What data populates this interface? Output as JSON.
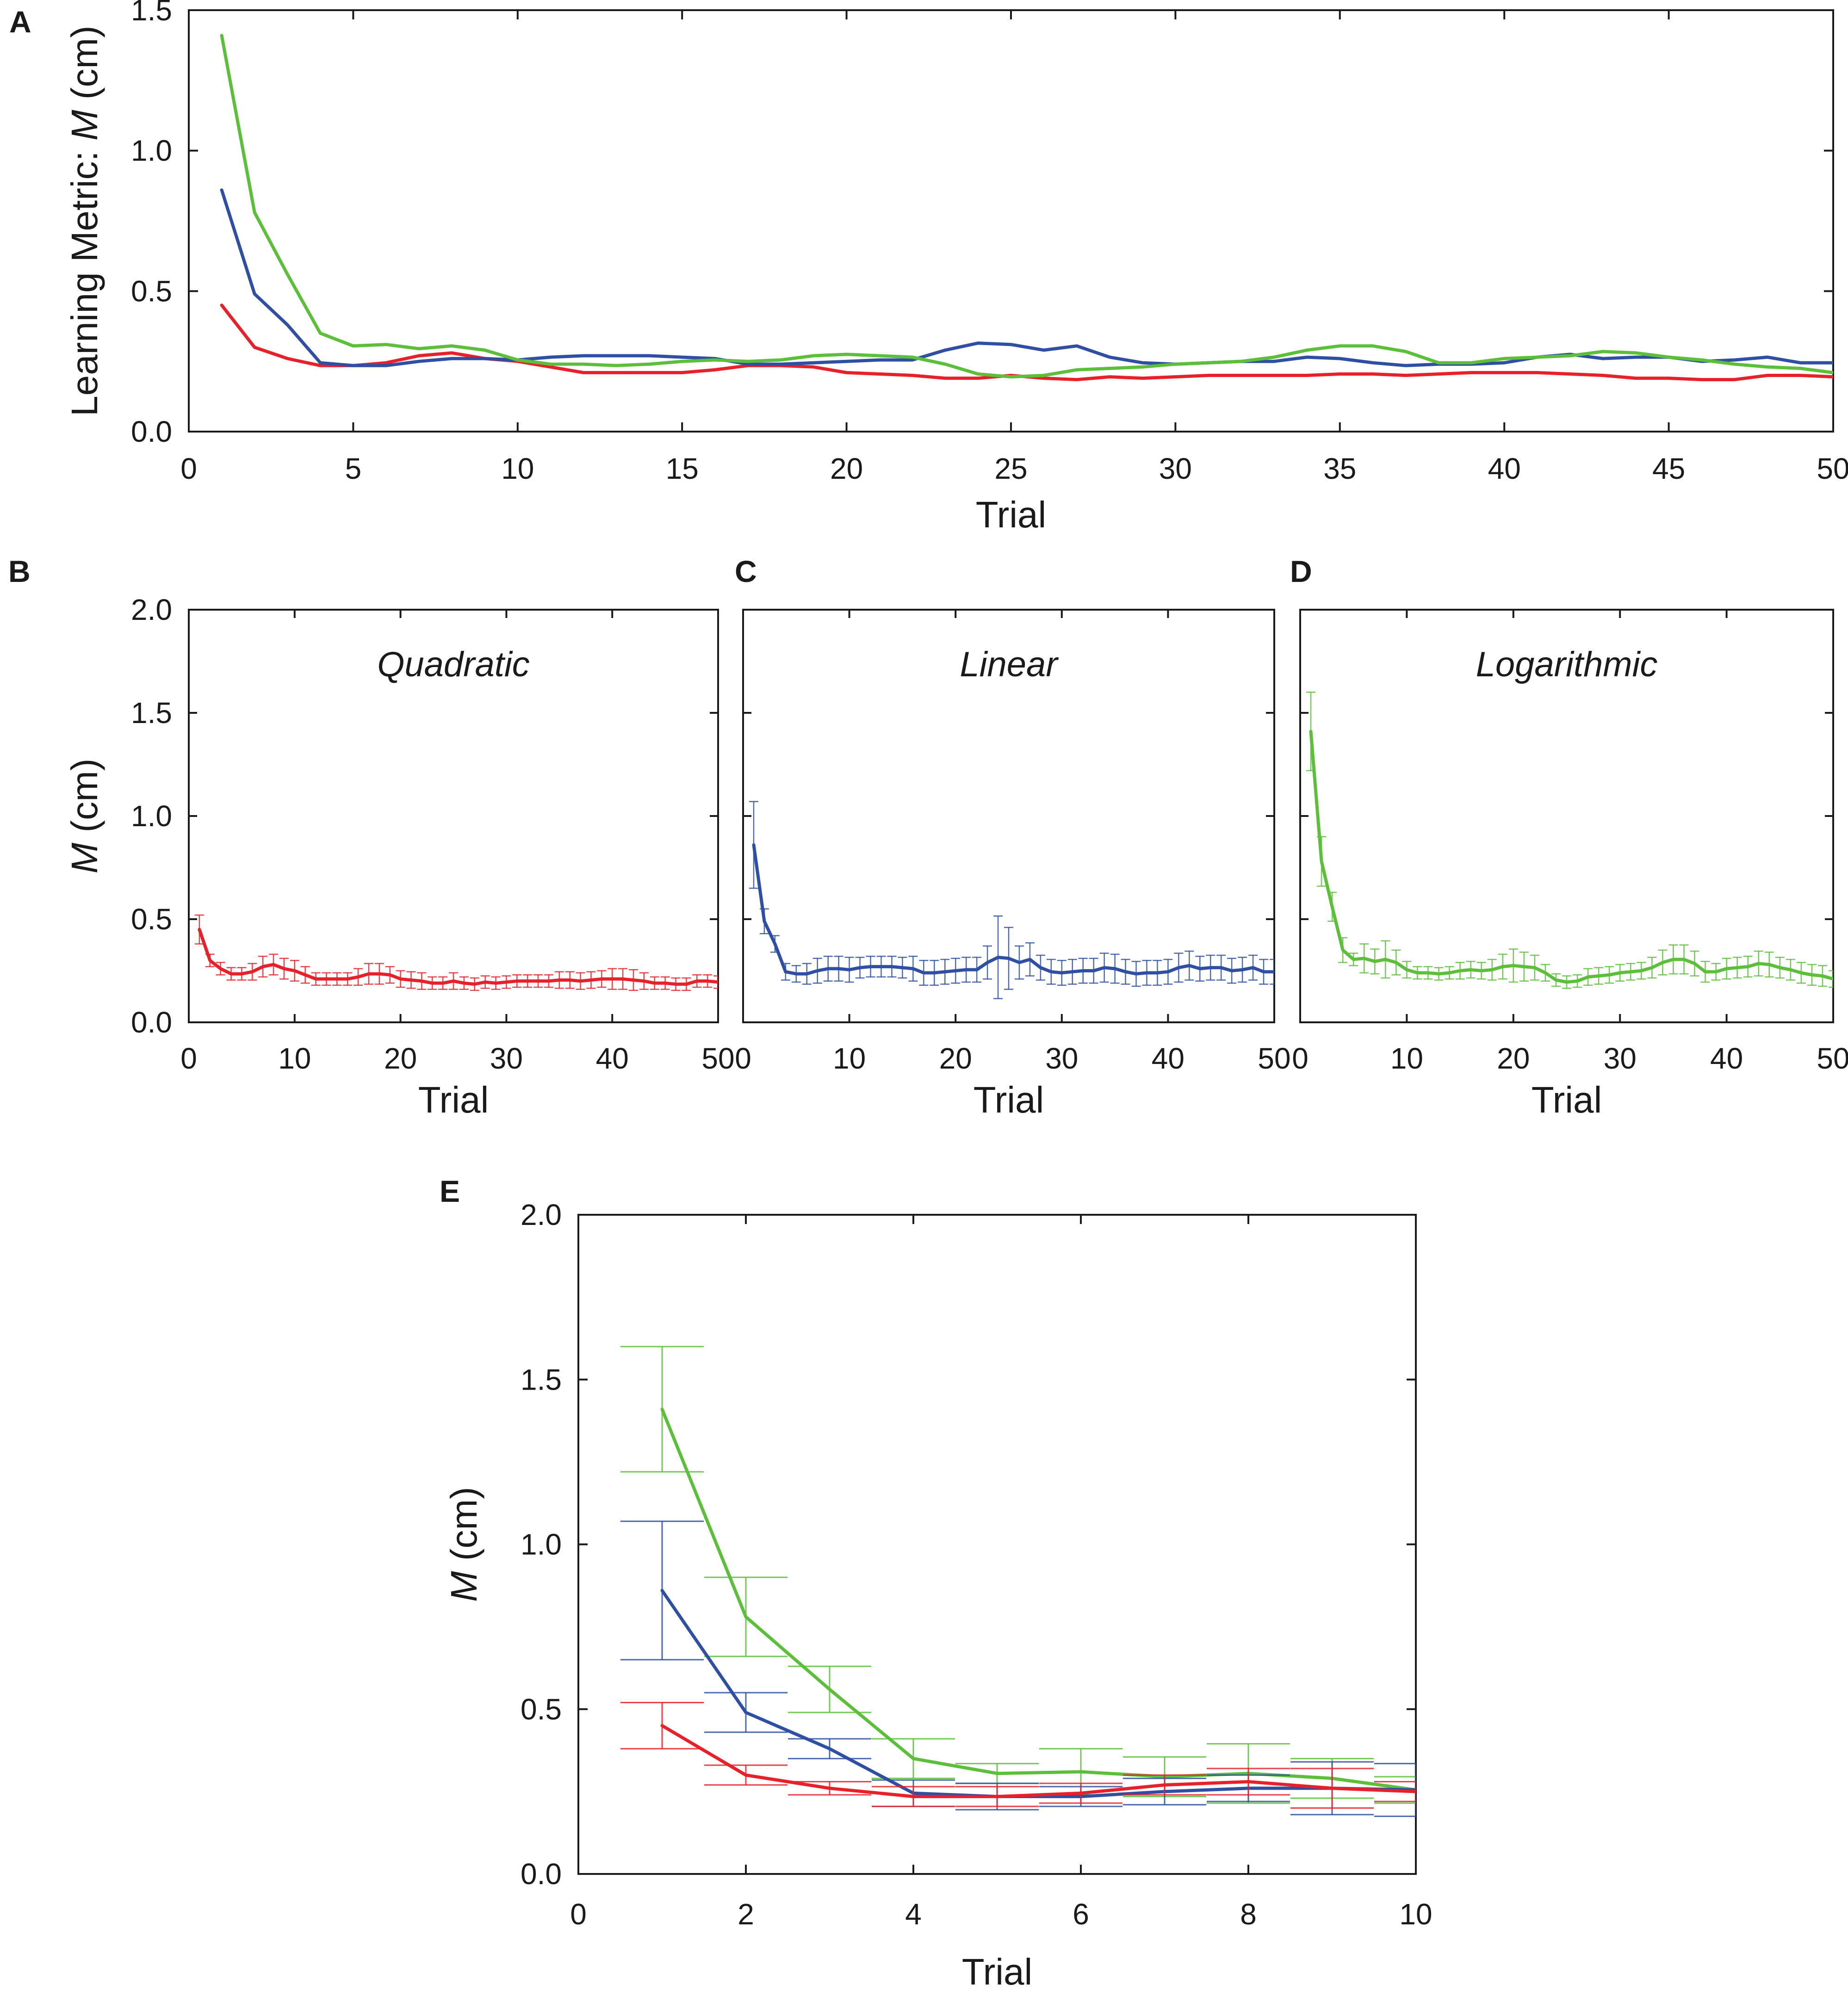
{
  "chart_data": [
    {
      "id": "A",
      "panel_label": "A",
      "type": "line",
      "title": "",
      "xlabel": "Trial",
      "ylabel_prefix": "Learning Metric: ",
      "ylabel_var": "M",
      "ylabel_unit": " (cm)",
      "xlim": [
        0,
        50
      ],
      "ylim": [
        0,
        1.5
      ],
      "xticks": [
        0,
        5,
        10,
        15,
        20,
        25,
        30,
        35,
        40,
        45,
        50
      ],
      "yticks": [
        "0.0",
        "0.5",
        "1.0",
        "1.5"
      ],
      "ytick_values": [
        0,
        0.5,
        1.0,
        1.5
      ],
      "x": [
        1,
        2,
        3,
        4,
        5,
        6,
        7,
        8,
        9,
        10,
        11,
        12,
        13,
        14,
        15,
        16,
        17,
        18,
        19,
        20,
        21,
        22,
        23,
        24,
        25,
        26,
        27,
        28,
        29,
        30,
        31,
        32,
        33,
        34,
        35,
        36,
        37,
        38,
        39,
        40,
        41,
        42,
        43,
        44,
        45,
        46,
        47,
        48,
        49,
        50
      ],
      "series": [
        {
          "name": "Quadratic",
          "color": "#e8202a",
          "values": [
            0.45,
            0.3,
            0.26,
            0.235,
            0.235,
            0.245,
            0.27,
            0.28,
            0.26,
            0.25,
            0.23,
            0.21,
            0.21,
            0.21,
            0.21,
            0.22,
            0.235,
            0.235,
            0.23,
            0.21,
            0.205,
            0.2,
            0.19,
            0.19,
            0.2,
            0.19,
            0.185,
            0.195,
            0.19,
            0.195,
            0.2,
            0.2,
            0.2,
            0.2,
            0.205,
            0.205,
            0.2,
            0.205,
            0.21,
            0.21,
            0.21,
            0.205,
            0.2,
            0.19,
            0.19,
            0.185,
            0.185,
            0.2,
            0.2,
            0.195
          ]
        },
        {
          "name": "Linear",
          "color": "#2e4fa3",
          "values": [
            0.86,
            0.49,
            0.38,
            0.245,
            0.235,
            0.235,
            0.25,
            0.26,
            0.26,
            0.255,
            0.265,
            0.27,
            0.27,
            0.27,
            0.265,
            0.26,
            0.24,
            0.24,
            0.245,
            0.25,
            0.255,
            0.255,
            0.29,
            0.315,
            0.31,
            0.29,
            0.305,
            0.265,
            0.245,
            0.24,
            0.245,
            0.25,
            0.25,
            0.265,
            0.26,
            0.245,
            0.235,
            0.24,
            0.24,
            0.245,
            0.265,
            0.275,
            0.26,
            0.265,
            0.265,
            0.25,
            0.255,
            0.265,
            0.245,
            0.245
          ]
        },
        {
          "name": "Logarithmic",
          "color": "#5bbf3a",
          "values": [
            1.41,
            0.78,
            0.56,
            0.35,
            0.305,
            0.31,
            0.295,
            0.305,
            0.29,
            0.255,
            0.24,
            0.24,
            0.235,
            0.24,
            0.25,
            0.255,
            0.25,
            0.255,
            0.27,
            0.275,
            0.27,
            0.265,
            0.24,
            0.205,
            0.195,
            0.2,
            0.22,
            0.225,
            0.23,
            0.24,
            0.245,
            0.25,
            0.265,
            0.29,
            0.305,
            0.305,
            0.285,
            0.245,
            0.245,
            0.26,
            0.265,
            0.27,
            0.285,
            0.28,
            0.265,
            0.255,
            0.24,
            0.23,
            0.225,
            0.21
          ]
        }
      ]
    },
    {
      "id": "B",
      "panel_label": "B",
      "type": "line",
      "title": "Quadratic",
      "xlabel": "Trial",
      "ylabel_var": "M",
      "ylabel_unit": " (cm)",
      "xlim": [
        0,
        50
      ],
      "ylim": [
        0,
        2.0
      ],
      "xticks": [
        0,
        10,
        20,
        30,
        40,
        50
      ],
      "yticks": [
        "0.0",
        "0.5",
        "1.0",
        "1.5",
        "2.0"
      ],
      "ytick_values": [
        0,
        0.5,
        1.0,
        1.5,
        2.0
      ],
      "series": [
        {
          "name": "Quadratic",
          "color": "#e8202a",
          "values": [
            0.45,
            0.3,
            0.26,
            0.235,
            0.235,
            0.245,
            0.27,
            0.28,
            0.26,
            0.25,
            0.23,
            0.21,
            0.21,
            0.21,
            0.21,
            0.22,
            0.235,
            0.235,
            0.23,
            0.21,
            0.205,
            0.2,
            0.19,
            0.19,
            0.2,
            0.19,
            0.185,
            0.195,
            0.19,
            0.195,
            0.2,
            0.2,
            0.2,
            0.2,
            0.205,
            0.205,
            0.2,
            0.205,
            0.21,
            0.21,
            0.21,
            0.205,
            0.2,
            0.19,
            0.19,
            0.185,
            0.185,
            0.2,
            0.2,
            0.195
          ],
          "error": [
            0.07,
            0.03,
            0.03,
            0.03,
            0.03,
            0.04,
            0.05,
            0.05,
            0.05,
            0.05,
            0.04,
            0.03,
            0.03,
            0.03,
            0.03,
            0.04,
            0.05,
            0.05,
            0.04,
            0.04,
            0.04,
            0.04,
            0.03,
            0.03,
            0.04,
            0.03,
            0.03,
            0.03,
            0.03,
            0.03,
            0.03,
            0.03,
            0.03,
            0.03,
            0.04,
            0.04,
            0.04,
            0.04,
            0.04,
            0.05,
            0.05,
            0.05,
            0.04,
            0.03,
            0.03,
            0.03,
            0.03,
            0.03,
            0.03,
            0.03
          ]
        }
      ]
    },
    {
      "id": "C",
      "panel_label": "C",
      "type": "line",
      "title": "Linear",
      "xlabel": "Trial",
      "xlim": [
        0,
        50
      ],
      "ylim": [
        0,
        2.0
      ],
      "xticks": [
        0,
        10,
        20,
        30,
        40,
        50
      ],
      "ytick_values": [
        0,
        0.5,
        1.0,
        1.5,
        2.0
      ],
      "series": [
        {
          "name": "Linear",
          "color": "#2e4fa3",
          "values": [
            0.86,
            0.49,
            0.38,
            0.245,
            0.235,
            0.235,
            0.25,
            0.26,
            0.26,
            0.255,
            0.265,
            0.27,
            0.27,
            0.27,
            0.265,
            0.26,
            0.24,
            0.24,
            0.245,
            0.25,
            0.255,
            0.255,
            0.29,
            0.315,
            0.31,
            0.29,
            0.305,
            0.265,
            0.245,
            0.24,
            0.245,
            0.25,
            0.25,
            0.265,
            0.26,
            0.245,
            0.235,
            0.24,
            0.24,
            0.245,
            0.265,
            0.275,
            0.26,
            0.265,
            0.265,
            0.25,
            0.255,
            0.265,
            0.245,
            0.245
          ],
          "error": [
            0.21,
            0.06,
            0.04,
            0.04,
            0.04,
            0.05,
            0.06,
            0.06,
            0.06,
            0.06,
            0.05,
            0.05,
            0.05,
            0.05,
            0.05,
            0.06,
            0.06,
            0.06,
            0.06,
            0.06,
            0.06,
            0.06,
            0.08,
            0.2,
            0.15,
            0.08,
            0.08,
            0.06,
            0.06,
            0.06,
            0.06,
            0.06,
            0.06,
            0.07,
            0.07,
            0.06,
            0.06,
            0.06,
            0.06,
            0.06,
            0.07,
            0.07,
            0.06,
            0.06,
            0.06,
            0.06,
            0.06,
            0.06,
            0.06,
            0.06
          ]
        }
      ]
    },
    {
      "id": "D",
      "panel_label": "D",
      "type": "line",
      "title": "Logarithmic",
      "xlabel": "Trial",
      "xlim": [
        0,
        50
      ],
      "ylim": [
        0,
        2.0
      ],
      "xticks": [
        0,
        10,
        20,
        30,
        40,
        50
      ],
      "ytick_values": [
        0,
        0.5,
        1.0,
        1.5,
        2.0
      ],
      "series": [
        {
          "name": "Logarithmic",
          "color": "#5bbf3a",
          "values": [
            1.41,
            0.78,
            0.56,
            0.35,
            0.305,
            0.31,
            0.295,
            0.305,
            0.29,
            0.255,
            0.24,
            0.24,
            0.235,
            0.24,
            0.25,
            0.255,
            0.25,
            0.255,
            0.27,
            0.275,
            0.27,
            0.265,
            0.24,
            0.205,
            0.195,
            0.2,
            0.22,
            0.225,
            0.23,
            0.24,
            0.245,
            0.25,
            0.265,
            0.29,
            0.305,
            0.305,
            0.285,
            0.245,
            0.245,
            0.26,
            0.265,
            0.27,
            0.285,
            0.28,
            0.265,
            0.255,
            0.24,
            0.23,
            0.225,
            0.21
          ],
          "error": [
            0.19,
            0.12,
            0.07,
            0.06,
            0.03,
            0.07,
            0.06,
            0.09,
            0.06,
            0.04,
            0.03,
            0.03,
            0.03,
            0.03,
            0.04,
            0.04,
            0.04,
            0.05,
            0.06,
            0.08,
            0.07,
            0.06,
            0.04,
            0.03,
            0.03,
            0.03,
            0.04,
            0.04,
            0.04,
            0.04,
            0.04,
            0.04,
            0.05,
            0.06,
            0.07,
            0.07,
            0.06,
            0.05,
            0.04,
            0.05,
            0.05,
            0.05,
            0.06,
            0.06,
            0.05,
            0.05,
            0.05,
            0.05,
            0.05,
            0.04
          ]
        }
      ]
    },
    {
      "id": "E",
      "panel_label": "E",
      "type": "line",
      "title": "",
      "xlabel": "Trial",
      "ylabel_var": "M",
      "ylabel_unit": " (cm)",
      "xlim": [
        0,
        10
      ],
      "ylim": [
        0,
        2.0
      ],
      "xticks": [
        0,
        2,
        4,
        6,
        8,
        10
      ],
      "yticks": [
        "0.0",
        "0.5",
        "1.0",
        "1.5",
        "2.0"
      ],
      "ytick_values": [
        0,
        0.5,
        1.0,
        1.5,
        2.0
      ],
      "x": [
        1,
        2,
        3,
        4,
        5,
        6,
        7,
        8,
        9,
        10
      ],
      "series": [
        {
          "name": "Logarithmic",
          "color": "#5bbf3a",
          "values": [
            1.41,
            0.78,
            0.56,
            0.35,
            0.305,
            0.31,
            0.295,
            0.305,
            0.29,
            0.255
          ],
          "error": [
            0.19,
            0.12,
            0.07,
            0.06,
            0.03,
            0.07,
            0.06,
            0.09,
            0.06,
            0.04
          ]
        },
        {
          "name": "Linear",
          "color": "#2e4fa3",
          "values": [
            0.86,
            0.49,
            0.38,
            0.245,
            0.235,
            0.235,
            0.25,
            0.26,
            0.26,
            0.255
          ],
          "error": [
            0.21,
            0.06,
            0.03,
            0.04,
            0.04,
            0.03,
            0.04,
            0.04,
            0.08,
            0.08
          ]
        },
        {
          "name": "Quadratic",
          "color": "#e8202a",
          "values": [
            0.45,
            0.3,
            0.26,
            0.235,
            0.235,
            0.245,
            0.27,
            0.28,
            0.26,
            0.25
          ],
          "error": [
            0.07,
            0.03,
            0.02,
            0.03,
            0.03,
            0.03,
            0.03,
            0.04,
            0.06,
            0.03
          ]
        }
      ]
    }
  ]
}
